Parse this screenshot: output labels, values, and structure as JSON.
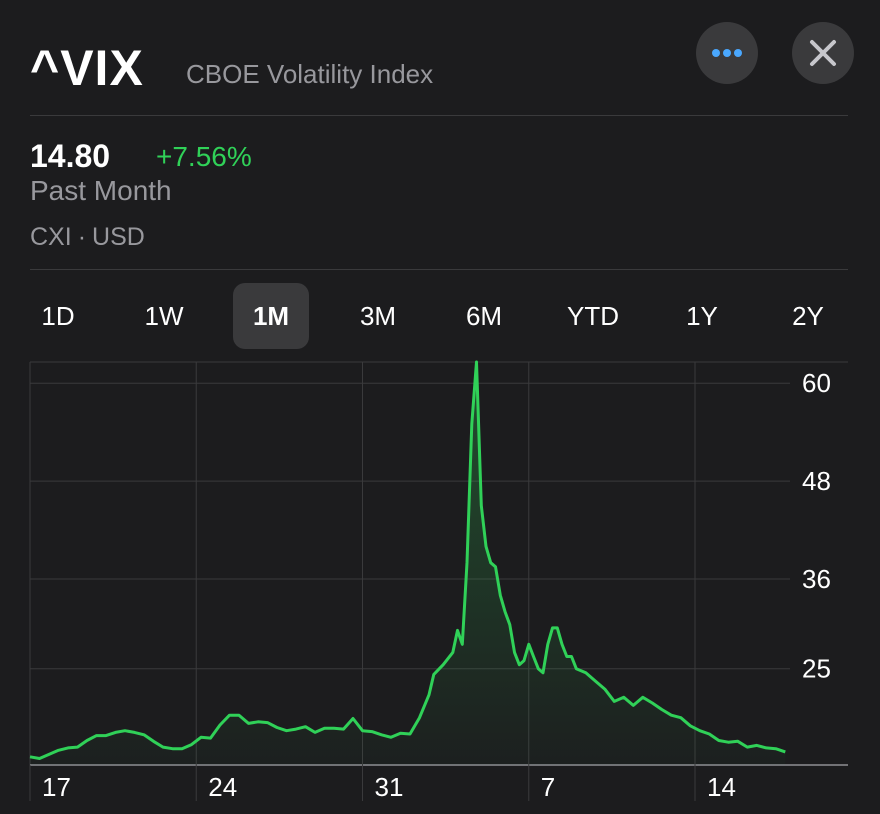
{
  "header": {
    "symbol": "^VIX",
    "name": "CBOE Volatility Index",
    "more_icon": "ellipsis-icon",
    "close_icon": "close-x-icon"
  },
  "quote": {
    "price": "14.80",
    "change": "+7.56%",
    "period": "Past Month",
    "exchange": "CXI",
    "currency": "USD"
  },
  "tabs": [
    {
      "label": "1D",
      "selected": false
    },
    {
      "label": "1W",
      "selected": false
    },
    {
      "label": "1M",
      "selected": true
    },
    {
      "label": "3M",
      "selected": false
    },
    {
      "label": "6M",
      "selected": false
    },
    {
      "label": "YTD",
      "selected": false
    },
    {
      "label": "1Y",
      "selected": false
    },
    {
      "label": "2Y",
      "selected": false
    }
  ],
  "colors": {
    "background": "#1c1c1e",
    "line": "#30d158",
    "positive": "#30d158",
    "grid": "#3a3a3c",
    "muted": "#98989d",
    "more_dots": "#4aa8ff"
  },
  "chart_data": {
    "type": "area",
    "x_tick_labels": [
      "17",
      "24",
      "31",
      "7",
      "14"
    ],
    "x_ticks": [
      0,
      7,
      14,
      21,
      28
    ],
    "y_tick_labels": [
      "60",
      "48",
      "36",
      "25"
    ],
    "y_ticks": [
      60,
      48,
      36,
      25
    ],
    "ylim": [
      13.2,
      62.6
    ],
    "xlim": [
      0,
      32.0
    ],
    "grid": true,
    "series": [
      {
        "x": [
          0.0,
          0.4,
          0.8,
          1.2,
          1.6,
          2.0,
          2.4,
          2.8,
          3.2,
          3.6,
          4.0,
          4.4,
          4.8,
          5.2,
          5.6,
          6.0,
          6.4,
          6.8,
          7.2,
          7.6,
          8.0,
          8.4,
          8.8,
          9.2,
          9.6,
          10.0,
          10.4,
          10.8,
          11.2,
          11.6,
          12.0,
          12.4,
          12.8,
          13.2,
          13.6,
          14.0,
          14.4,
          14.8,
          15.2,
          15.6,
          16.0,
          16.4,
          16.8,
          17.0,
          17.4,
          17.8,
          18.0,
          18.2,
          18.4,
          18.6,
          18.8,
          19.0,
          19.2,
          19.4,
          19.6,
          19.8,
          20.0,
          20.2,
          20.4,
          20.6,
          20.8,
          21.0,
          21.2,
          21.4,
          21.6,
          21.8,
          22.0,
          22.2,
          22.4,
          22.6,
          22.8,
          23.0,
          23.4,
          23.8,
          24.2,
          24.6,
          25.0,
          25.4,
          25.8,
          26.2,
          26.6,
          27.0,
          27.4,
          27.8,
          28.2,
          28.6,
          29.0,
          29.4,
          29.8,
          30.2,
          30.6,
          31.0,
          31.4,
          31.8
        ],
        "y": [
          14.2,
          14.0,
          14.5,
          15.0,
          15.3,
          15.4,
          16.2,
          16.8,
          16.8,
          17.2,
          17.4,
          17.2,
          16.9,
          16.1,
          15.4,
          15.2,
          15.2,
          15.7,
          16.6,
          16.5,
          18.1,
          19.3,
          19.3,
          18.3,
          18.5,
          18.4,
          17.8,
          17.4,
          17.6,
          17.9,
          17.2,
          17.7,
          17.7,
          17.6,
          18.9,
          17.4,
          17.3,
          16.9,
          16.6,
          17.1,
          17.0,
          19.0,
          21.8,
          24.3,
          25.5,
          27.0,
          29.7,
          28.0,
          38.0,
          55.0,
          62.6,
          45.0,
          40.0,
          38.0,
          37.5,
          34.0,
          32.0,
          30.4,
          27.0,
          25.5,
          26.0,
          28.0,
          26.5,
          25.0,
          24.5,
          28.0,
          30.0,
          30.0,
          28.0,
          26.5,
          26.5,
          25.0,
          24.5,
          23.5,
          22.5,
          21.0,
          21.5,
          20.5,
          21.5,
          20.8,
          20.0,
          19.3,
          19.0,
          18.0,
          17.4,
          17.0,
          16.2,
          16.0,
          16.1,
          15.4,
          15.6,
          15.3,
          15.2,
          14.8
        ]
      }
    ]
  }
}
